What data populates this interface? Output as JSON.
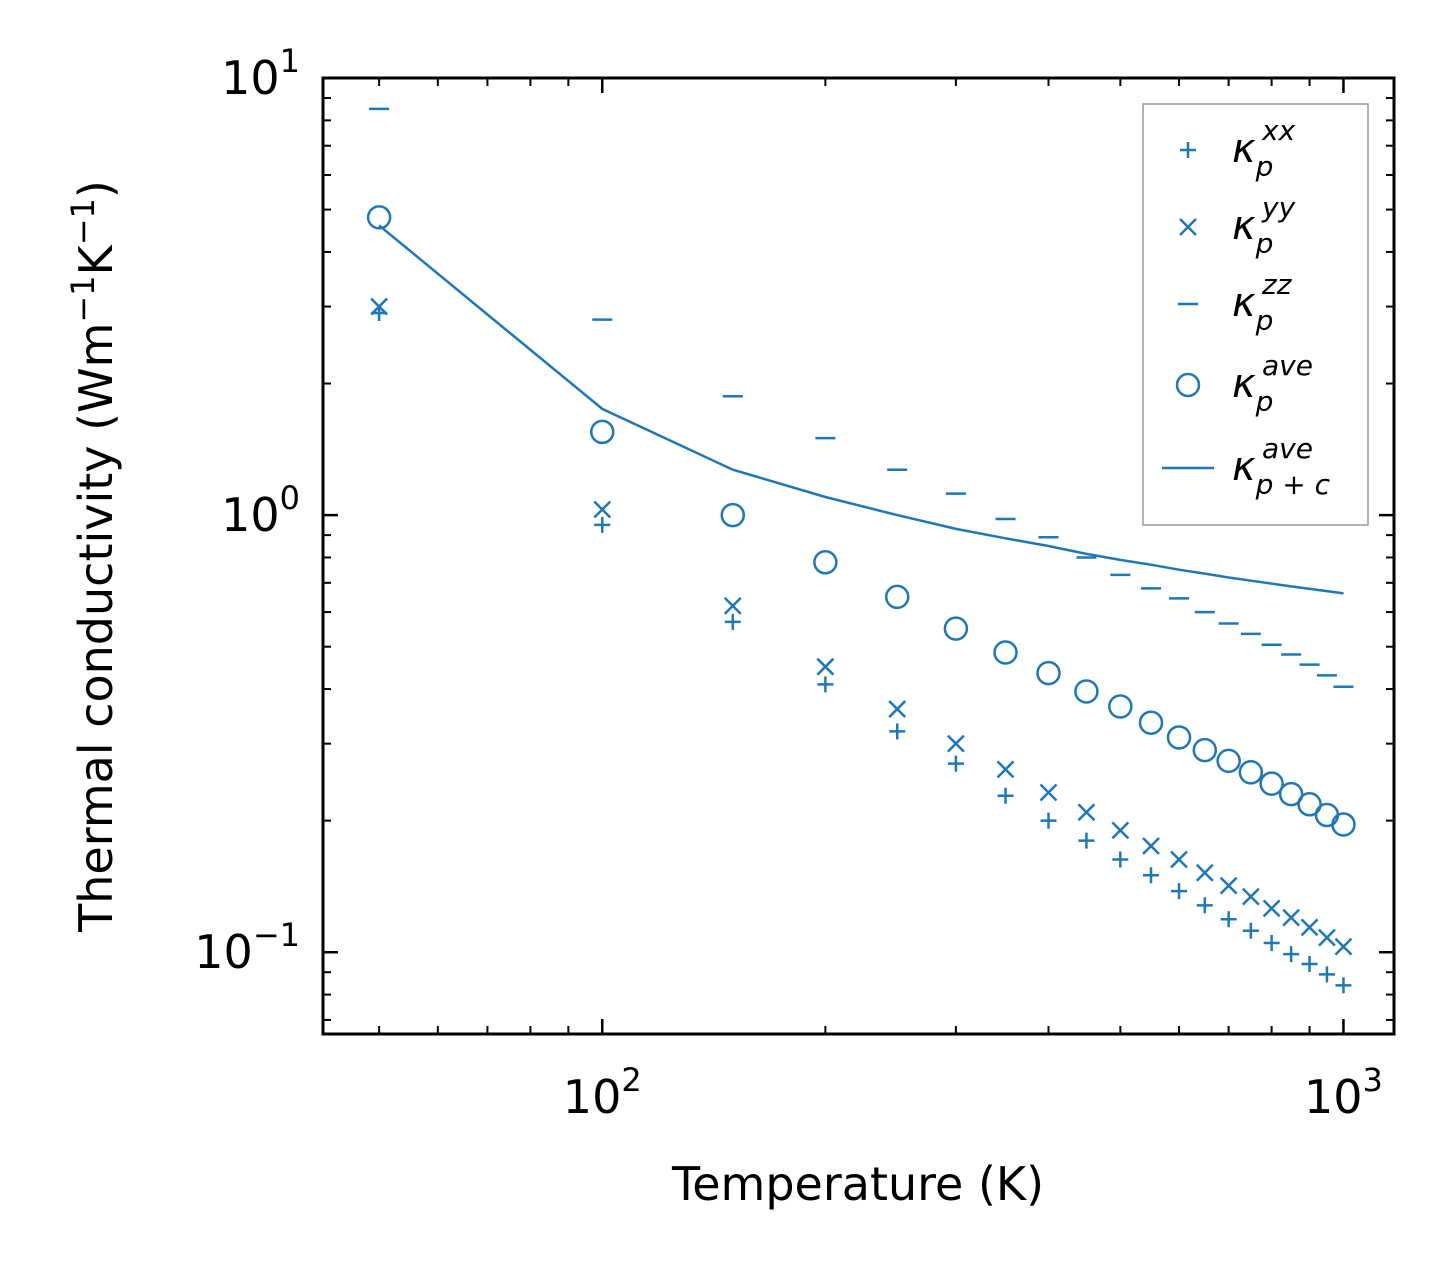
{
  "chart_data": {
    "type": "scatter",
    "xscale": "log",
    "yscale": "log",
    "xlim": [
      42,
      1170
    ],
    "ylim": [
      0.065,
      10
    ],
    "xlabel": "Temperature (K)",
    "ylabel": "Thermal conductivity (Wm⁻¹K⁻¹)",
    "ylabel_parts": {
      "pre": "Thermal conductivity (Wm",
      "exp1": "−1",
      "mid": "K",
      "exp2": "−1",
      "post": ")"
    },
    "xticks": [
      {
        "base": "10",
        "exp": "2",
        "value": 100
      },
      {
        "base": "10",
        "exp": "3",
        "value": 1000
      }
    ],
    "yticks": [
      {
        "base": "10",
        "exp": "−1",
        "value": 0.1
      },
      {
        "base": "10",
        "exp": "0",
        "value": 1
      },
      {
        "base": "10",
        "exp": "1",
        "value": 10
      }
    ],
    "color": "#1f77b4",
    "legend_position": "top-right",
    "x": [
      50,
      100,
      150,
      200,
      250,
      300,
      350,
      400,
      450,
      500,
      550,
      600,
      650,
      700,
      750,
      800,
      850,
      900,
      950,
      1000
    ],
    "series": [
      {
        "name": "kappa_p_xx",
        "base": "κ",
        "sub": "p",
        "sup": "xx",
        "marker": "plus",
        "values": [
          2.9,
          0.95,
          0.57,
          0.41,
          0.32,
          0.27,
          0.228,
          0.2,
          0.18,
          0.163,
          0.15,
          0.138,
          0.128,
          0.119,
          0.112,
          0.105,
          0.099,
          0.094,
          0.089,
          0.084
        ]
      },
      {
        "name": "kappa_p_yy",
        "base": "κ",
        "sub": "p",
        "sup": "yy",
        "marker": "x",
        "values": [
          3.0,
          1.03,
          0.62,
          0.45,
          0.36,
          0.3,
          0.262,
          0.232,
          0.209,
          0.19,
          0.175,
          0.163,
          0.152,
          0.142,
          0.134,
          0.126,
          0.12,
          0.114,
          0.108,
          0.103
        ]
      },
      {
        "name": "kappa_p_zz",
        "base": "κ",
        "sub": "p",
        "sup": "zz",
        "marker": "hline",
        "values": [
          8.5,
          2.8,
          1.87,
          1.5,
          1.27,
          1.12,
          0.98,
          0.89,
          0.8,
          0.73,
          0.68,
          0.645,
          0.6,
          0.565,
          0.535,
          0.505,
          0.48,
          0.455,
          0.43,
          0.405
        ]
      },
      {
        "name": "kappa_p_ave",
        "base": "κ",
        "sub": "p",
        "sup": "ave",
        "marker": "circle",
        "values": [
          4.8,
          1.55,
          1.0,
          0.78,
          0.65,
          0.55,
          0.485,
          0.435,
          0.395,
          0.365,
          0.335,
          0.31,
          0.29,
          0.274,
          0.258,
          0.243,
          0.23,
          0.218,
          0.206,
          0.196
        ]
      },
      {
        "name": "kappa_pc_ave",
        "base": "κ",
        "sub": "p + c",
        "sup": "ave",
        "marker": "line",
        "values": [
          4.6,
          1.75,
          1.27,
          1.1,
          1.0,
          0.93,
          0.885,
          0.85,
          0.815,
          0.79,
          0.77,
          0.75,
          0.735,
          0.72,
          0.708,
          0.697,
          0.687,
          0.678,
          0.67,
          0.662
        ]
      }
    ]
  }
}
